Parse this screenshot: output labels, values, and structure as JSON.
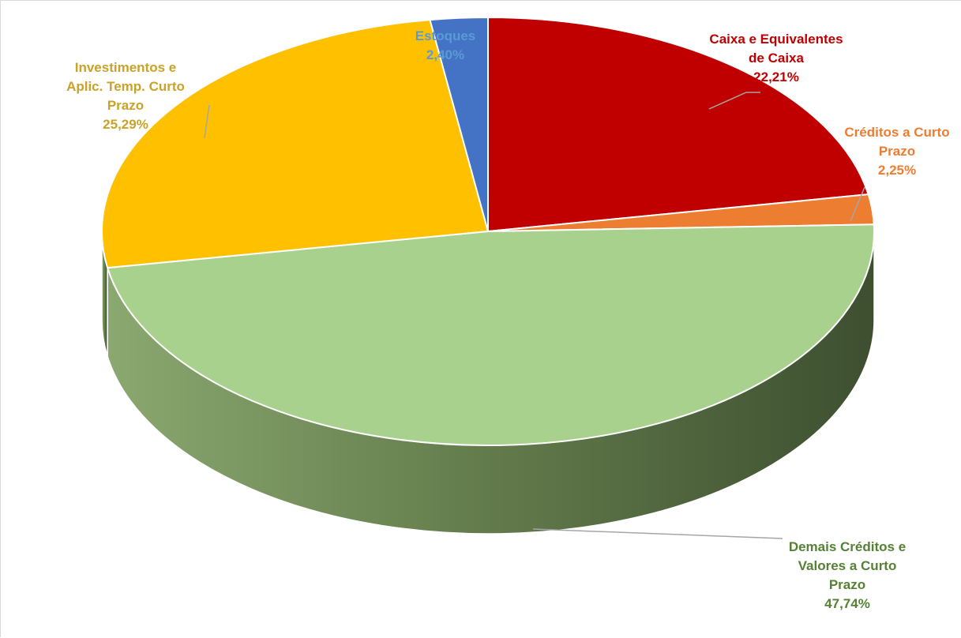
{
  "chart_data": {
    "type": "pie",
    "title": "",
    "categories": [
      "Caixa e Equivalentes de Caixa",
      "Créditos a Curto Prazo",
      "Demais Créditos e Valores a Curto Prazo",
      "Investimentos e Aplic. Temp. Curto Prazo",
      "Estoques"
    ],
    "values": [
      22.21,
      2.25,
      47.74,
      25.29,
      2.4
    ],
    "colors": [
      "#c00000",
      "#ed7d31",
      "#a9d18e",
      "#ffc000",
      "#4472c4"
    ],
    "label_colors": [
      "#c00000",
      "#ed7d31",
      "#548235",
      "#c9a227",
      "#5b9bd5"
    ],
    "percent_labels": [
      "22,21%",
      "2,25%",
      "47,74%",
      "25,29%",
      "2,40%"
    ],
    "label_lines": [
      [
        "Caixa e Equivalentes",
        "de Caixa",
        "22,21%"
      ],
      [
        "Créditos a Curto",
        "Prazo",
        "2,25%"
      ],
      [
        "Demais Créditos e",
        "Valores a Curto",
        "Prazo",
        "47,74%"
      ],
      [
        "Investimentos e",
        "Aplic. Temp. Curto",
        "Prazo",
        "25,29%"
      ],
      [
        "Estoques",
        "2,40%"
      ]
    ],
    "start_angle": "12 o'clock",
    "direction": "clockwise",
    "style": "3D pie",
    "legend": "none"
  }
}
